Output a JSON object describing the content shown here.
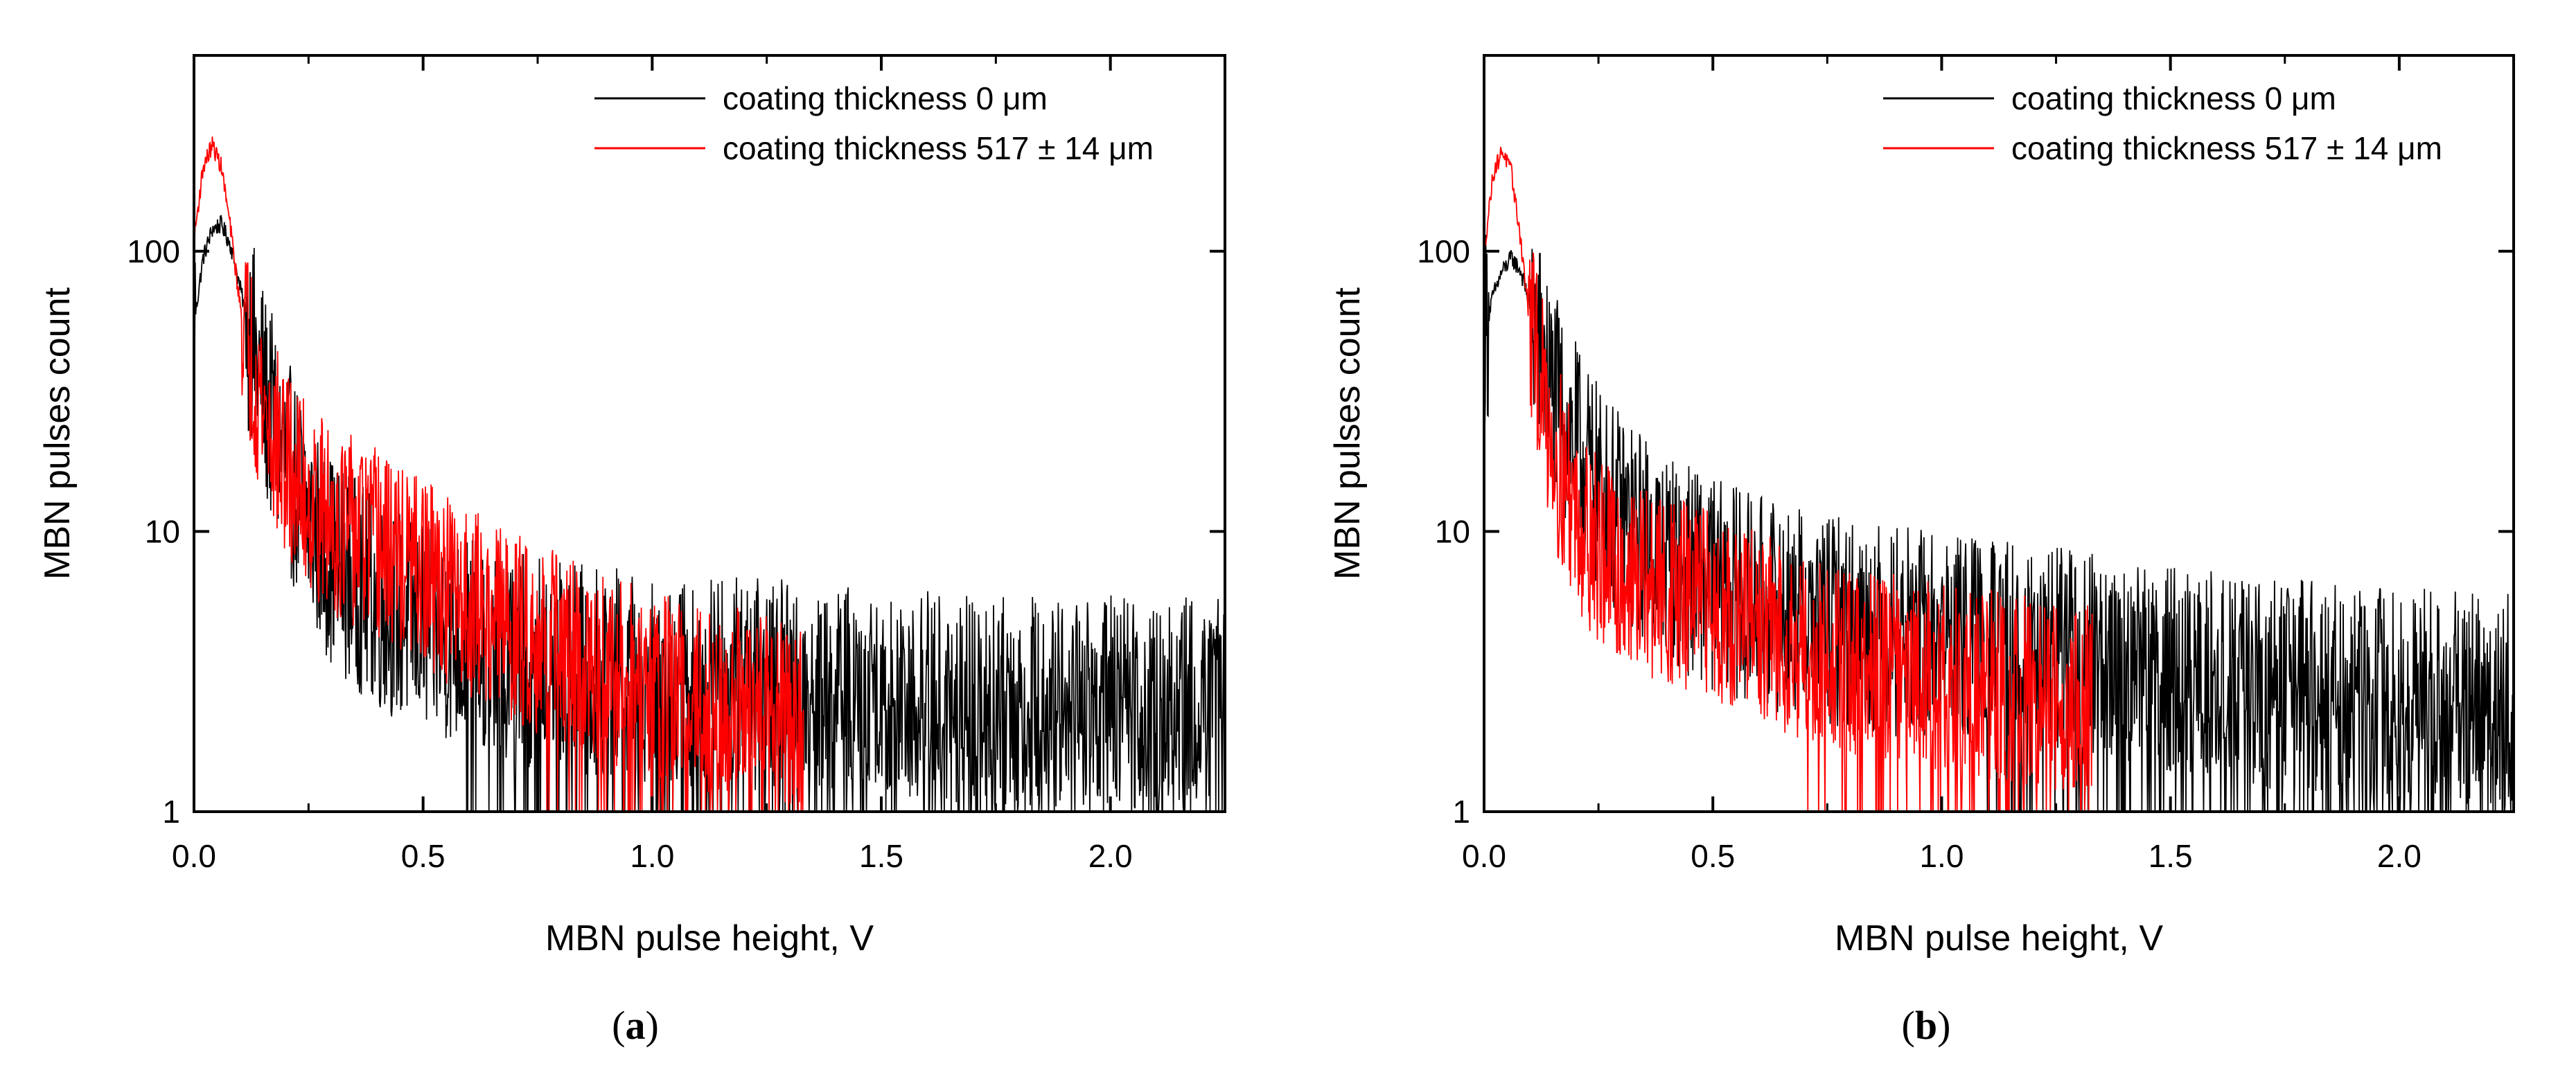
{
  "figure": {
    "panels": [
      {
        "label_open": "(",
        "label_letter": "a",
        "label_close": ")"
      },
      {
        "label_open": "(",
        "label_letter": "b",
        "label_close": ")"
      }
    ]
  },
  "chart_data": [
    {
      "type": "line",
      "title": "",
      "xlabel": "MBN pulse height, V",
      "ylabel": "MBN pulses count",
      "xlim": [
        0.0,
        2.25
      ],
      "ylim": [
        1,
        500
      ],
      "yscale": "log",
      "xticks": [
        0.0,
        0.5,
        1.0,
        1.5,
        2.0
      ],
      "xtick_labels": [
        "0.0",
        "0.5",
        "1.0",
        "1.5",
        "2.0"
      ],
      "yticks": [
        1,
        10,
        100
      ],
      "ytick_labels": [
        "1",
        "10",
        "100"
      ],
      "legend_position": "top-right",
      "series": [
        {
          "name": "coating thickness 0 μm",
          "color": "#000000",
          "x": [
            0.0,
            0.02,
            0.04,
            0.06,
            0.08,
            0.1,
            0.13,
            0.16,
            0.2,
            0.25,
            0.3,
            0.4,
            0.5,
            0.7,
            1.0,
            1.3,
            1.6,
            1.9,
            2.25
          ],
          "y": [
            55,
            95,
            120,
            125,
            105,
            75,
            45,
            28,
            18,
            11,
            8,
            5.5,
            4.5,
            3.5,
            3.0,
            2.8,
            2.6,
            2.5,
            2.4
          ],
          "noise_spread": 2.4
        },
        {
          "name": "coating thickness 517 ± 14 μm",
          "color": "#ff0000",
          "x": [
            0.0,
            0.02,
            0.04,
            0.06,
            0.08,
            0.1,
            0.13,
            0.16,
            0.2,
            0.25,
            0.3,
            0.4,
            0.5,
            0.7,
            0.9,
            1.1,
            1.33
          ],
          "y": [
            110,
            200,
            240,
            200,
            120,
            65,
            38,
            25,
            17,
            13,
            11,
            9,
            7,
            4.5,
            3.2,
            2.6,
            2.2
          ],
          "xmax": 1.33,
          "noise_spread": 2.2
        }
      ]
    },
    {
      "type": "line",
      "title": "",
      "xlabel": "MBN pulse height, V",
      "ylabel": "MBN pulses count",
      "xlim": [
        0.0,
        2.25
      ],
      "ylim": [
        1,
        500
      ],
      "yscale": "log",
      "xticks": [
        0.0,
        0.5,
        1.0,
        1.5,
        2.0
      ],
      "xtick_labels": [
        "0.0",
        "0.5",
        "1.0",
        "1.5",
        "2.0"
      ],
      "yticks": [
        1,
        10,
        100
      ],
      "ytick_labels": [
        "1",
        "10",
        "100"
      ],
      "legend_position": "top-right",
      "series": [
        {
          "name": "coating thickness 0 μm",
          "color": "#000000",
          "x": [
            0.0,
            0.02,
            0.04,
            0.06,
            0.08,
            0.1,
            0.13,
            0.16,
            0.2,
            0.25,
            0.3,
            0.4,
            0.5,
            0.7,
            1.0,
            1.3,
            1.6,
            1.9,
            2.25
          ],
          "y": [
            50,
            70,
            85,
            95,
            85,
            65,
            40,
            28,
            20,
            14,
            11,
            8,
            6.5,
            5,
            4.2,
            3.6,
            3.0,
            2.7,
            2.5
          ],
          "noise_spread": 2.4
        },
        {
          "name": "coating thickness 517 ± 14 μm",
          "color": "#ff0000",
          "x": [
            0.0,
            0.02,
            0.04,
            0.06,
            0.08,
            0.1,
            0.13,
            0.16,
            0.2,
            0.25,
            0.3,
            0.4,
            0.5,
            0.6,
            0.8,
            1.0,
            1.2,
            1.33
          ],
          "y": [
            100,
            190,
            230,
            190,
            110,
            55,
            30,
            18,
            12,
            8.5,
            7,
            6,
            5.5,
            4.5,
            3.5,
            3.0,
            2.7,
            2.5
          ],
          "xmax": 1.33,
          "noise_spread": 2.2
        }
      ]
    }
  ]
}
